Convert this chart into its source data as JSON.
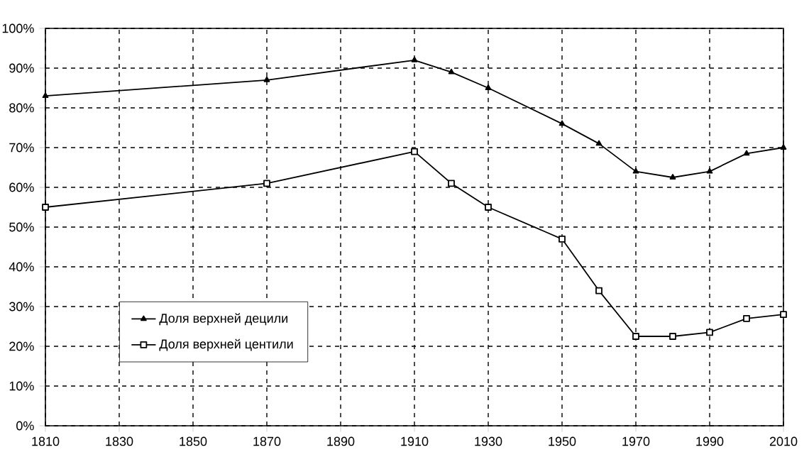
{
  "chart_data": {
    "type": "line",
    "x": [
      1810,
      1870,
      1910,
      1920,
      1930,
      1950,
      1960,
      1970,
      1980,
      1990,
      2000,
      2010
    ],
    "series": [
      {
        "name": "Доля верхней децили",
        "color": "#000000",
        "marker": "triangle",
        "values": [
          83,
          87,
          92,
          89,
          85,
          76,
          71,
          64,
          62.5,
          64,
          68.5,
          70
        ]
      },
      {
        "name": "Доля верхней центили",
        "color": "#000000",
        "marker": "square",
        "values": [
          55,
          61,
          69,
          61,
          55,
          47,
          34,
          22.5,
          22.5,
          23.5,
          27,
          28
        ]
      }
    ],
    "xlim": [
      1810,
      2010
    ],
    "ylim": [
      0,
      100
    ],
    "xticks": [
      1810,
      1830,
      1850,
      1870,
      1890,
      1910,
      1930,
      1950,
      1970,
      1990,
      2010
    ],
    "yticks": [
      {
        "value": 0,
        "label": "0%"
      },
      {
        "value": 10,
        "label": "10%"
      },
      {
        "value": 20,
        "label": "20%"
      },
      {
        "value": 30,
        "label": "30%"
      },
      {
        "value": 40,
        "label": "40%"
      },
      {
        "value": 50,
        "label": "50%"
      },
      {
        "value": 60,
        "label": "60%"
      },
      {
        "value": 70,
        "label": "70%"
      },
      {
        "value": 80,
        "label": "80%"
      },
      {
        "value": 90,
        "label": "90%"
      },
      {
        "value": 100,
        "label": "100%"
      }
    ],
    "grid": true,
    "legend": "bottom left",
    "line_style": "solid"
  }
}
